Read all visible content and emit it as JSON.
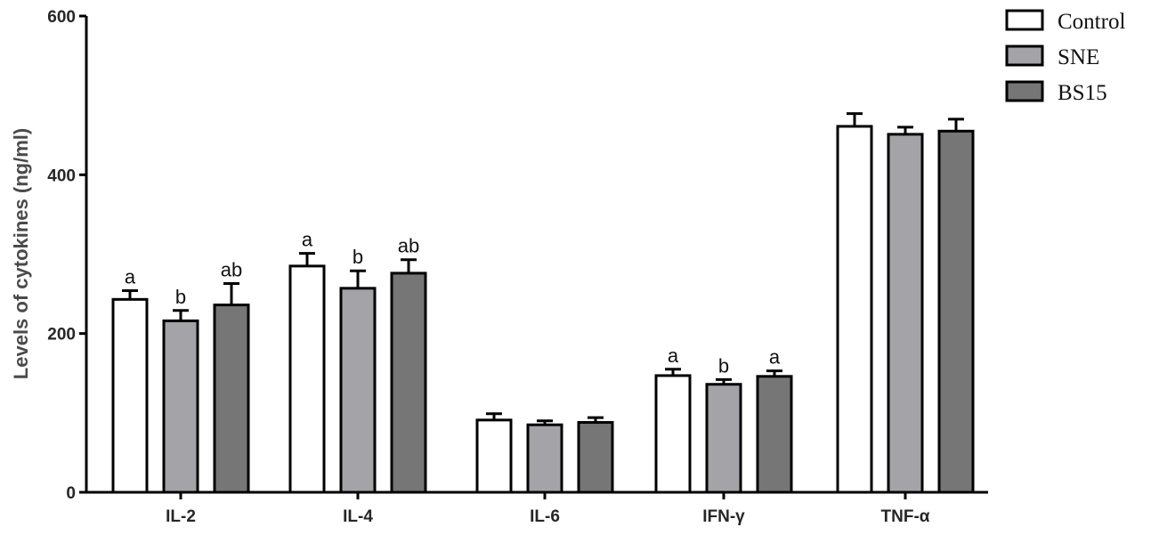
{
  "chart_data": {
    "type": "bar",
    "ylabel": "Levels of cytokines (ng/ml)",
    "ylim": [
      0,
      600
    ],
    "yticks": [
      0,
      200,
      400,
      600
    ],
    "categories": [
      "IL-2",
      "IL-4",
      "IL-6",
      "IFN-γ",
      "TNF-α"
    ],
    "series": [
      {
        "name": "Control",
        "color": "#ffffff",
        "values": [
          243,
          285,
          91,
          147,
          461
        ],
        "errors": [
          11,
          16,
          8,
          8,
          16
        ],
        "labels": [
          "a",
          "a",
          "",
          "a",
          ""
        ]
      },
      {
        "name": "SNE",
        "color": "#a3a3a8",
        "values": [
          216,
          257,
          85,
          136,
          451
        ],
        "errors": [
          13,
          22,
          5,
          6,
          9
        ],
        "labels": [
          "b",
          "b",
          "",
          "b",
          ""
        ]
      },
      {
        "name": "BS15",
        "color": "#767676",
        "values": [
          236,
          276,
          88,
          146,
          455
        ],
        "errors": [
          27,
          17,
          6,
          7,
          15
        ],
        "labels": [
          "ab",
          "ab",
          "",
          "a",
          ""
        ]
      }
    ],
    "grid": false,
    "legend": "top-right"
  }
}
